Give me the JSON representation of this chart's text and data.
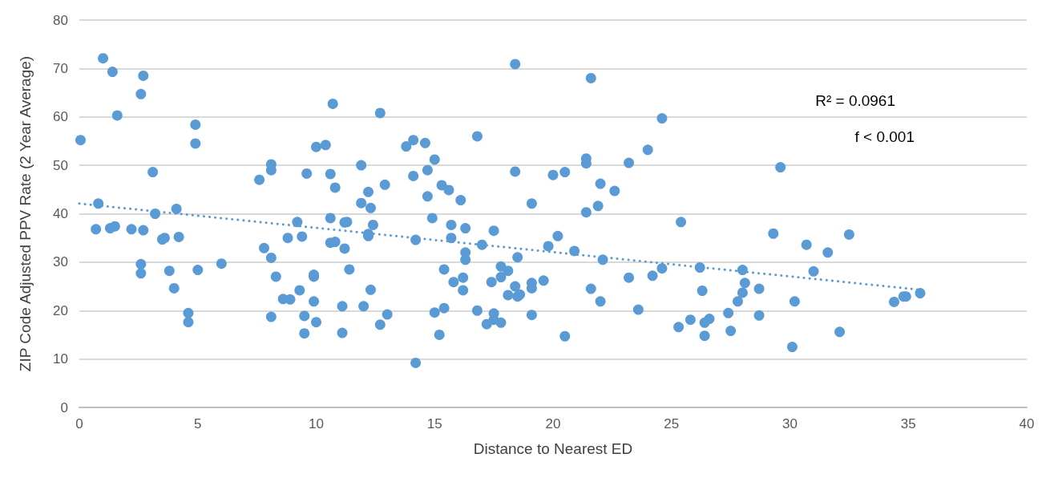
{
  "chart_data": {
    "type": "scatter",
    "xlabel": "Distance to Nearest ED",
    "ylabel": "ZIP Code Adjusted PPV Rate (2 Year Average)",
    "xlim": [
      0,
      40
    ],
    "xticks": [
      0,
      5,
      10,
      15,
      20,
      25,
      30,
      35,
      40
    ],
    "ylim": [
      0,
      80
    ],
    "yticks": [
      0,
      10,
      20,
      30,
      40,
      50,
      60,
      70,
      80
    ],
    "grid": "y",
    "marker": "circle",
    "annotations": [
      "R² = 0.0961",
      "f < 0.001"
    ],
    "series": [
      {
        "color": "#5b9bd5",
        "x": [
          0.05,
          0.8,
          0.7,
          1.0,
          1.3,
          1.4,
          1.5,
          1.6,
          2.2,
          2.6,
          2.7,
          2.7,
          2.6,
          2.6,
          3.1,
          3.2,
          3.5,
          3.6,
          3.8,
          4.0,
          4.1,
          4.2,
          4.6,
          4.6,
          4.9,
          4.9,
          5.0,
          6.0,
          7.6,
          7.8,
          8.1,
          8.1,
          8.1,
          8.1,
          8.3,
          8.6,
          8.8,
          8.9,
          9.2,
          9.3,
          9.4,
          9.5,
          9.5,
          9.6,
          9.9,
          9.9,
          9.9,
          10.0,
          10.0,
          10.4,
          10.6,
          10.6,
          10.6,
          10.7,
          10.8,
          10.8,
          11.1,
          11.1,
          11.2,
          11.2,
          11.3,
          11.4,
          11.9,
          11.9,
          12.0,
          12.2,
          12.2,
          12.2,
          12.3,
          12.3,
          12.4,
          12.7,
          12.7,
          12.9,
          13.0,
          13.8,
          14.1,
          14.1,
          14.2,
          14.2,
          14.6,
          14.7,
          14.7,
          14.9,
          15.0,
          15.0,
          15.2,
          15.3,
          15.4,
          15.4,
          15.6,
          15.7,
          15.7,
          15.8,
          16.1,
          16.2,
          16.2,
          16.3,
          16.3,
          16.3,
          16.8,
          16.8,
          17.0,
          17.2,
          17.4,
          17.5,
          17.5,
          17.5,
          17.8,
          17.8,
          17.8,
          18.1,
          18.1,
          18.4,
          18.4,
          18.4,
          18.5,
          18.5,
          18.6,
          19.1,
          19.1,
          19.1,
          19.1,
          19.6,
          19.8,
          20.0,
          20.2,
          20.5,
          20.5,
          20.9,
          21.4,
          21.4,
          21.4,
          21.6,
          21.6,
          21.9,
          22.0,
          22.0,
          22.1,
          22.6,
          23.2,
          23.2,
          23.6,
          24.0,
          24.2,
          24.6,
          24.6,
          25.3,
          25.4,
          25.8,
          26.2,
          26.3,
          26.4,
          26.4,
          26.6,
          27.4,
          27.5,
          27.8,
          28.0,
          28.0,
          28.1,
          28.7,
          28.7,
          29.3,
          29.6,
          30.1,
          30.2,
          30.7,
          31.0,
          31.6,
          32.1,
          32.5,
          34.4,
          34.8,
          34.9,
          35.5
        ],
        "values": [
          55.2,
          42.1,
          36.8,
          72.1,
          37.0,
          69.3,
          37.4,
          60.3,
          36.8,
          64.7,
          68.5,
          36.6,
          29.6,
          27.7,
          48.6,
          40.0,
          34.7,
          35.0,
          28.2,
          24.6,
          41.0,
          35.2,
          19.5,
          17.6,
          58.4,
          54.5,
          28.4,
          29.7,
          47.0,
          32.9,
          50.2,
          49.0,
          30.9,
          18.7,
          27.0,
          22.4,
          35.0,
          22.3,
          38.3,
          24.2,
          35.3,
          18.9,
          15.3,
          48.3,
          27.4,
          27.0,
          21.9,
          53.8,
          17.6,
          54.2,
          34.0,
          48.2,
          39.1,
          62.7,
          45.4,
          34.2,
          20.9,
          15.4,
          38.2,
          32.8,
          38.3,
          28.5,
          50.0,
          42.2,
          20.9,
          44.5,
          35.8,
          35.4,
          41.2,
          24.3,
          37.7,
          60.8,
          17.1,
          46.0,
          19.2,
          53.9,
          55.2,
          47.8,
          9.2,
          34.6,
          54.6,
          49.0,
          43.6,
          39.1,
          51.2,
          19.6,
          15.0,
          45.9,
          28.5,
          20.5,
          44.9,
          37.7,
          35.0,
          25.9,
          42.8,
          26.8,
          24.2,
          37.0,
          32.0,
          30.5,
          56.0,
          20.0,
          33.6,
          17.2,
          25.9,
          19.4,
          18.1,
          36.5,
          26.9,
          17.5,
          29.1,
          28.2,
          23.2,
          48.7,
          70.9,
          25.0,
          31.0,
          22.9,
          23.3,
          42.1,
          19.1,
          25.7,
          24.6,
          26.2,
          33.3,
          48.0,
          35.4,
          48.6,
          14.7,
          32.3,
          50.4,
          51.4,
          40.3,
          68.0,
          24.5,
          41.6,
          46.2,
          21.9,
          30.5,
          44.7,
          50.5,
          26.8,
          20.2,
          53.2,
          27.2,
          59.7,
          28.7,
          16.6,
          38.3,
          18.1,
          28.9,
          24.1,
          17.5,
          14.8,
          18.3,
          19.5,
          15.8,
          21.9,
          23.7,
          28.4,
          25.7,
          24.5,
          19.0,
          35.9,
          49.6,
          12.5,
          21.9,
          33.6,
          28.1,
          32.0,
          15.6,
          35.7,
          21.8,
          22.9,
          22.9,
          23.6
        ]
      },
      {
        "type": "line",
        "color": "#5b9bd5",
        "x": [
          0,
          35.5
        ],
        "values": [
          42.1,
          24.3
        ],
        "line_style": "dotted",
        "marker": "none"
      }
    ]
  }
}
